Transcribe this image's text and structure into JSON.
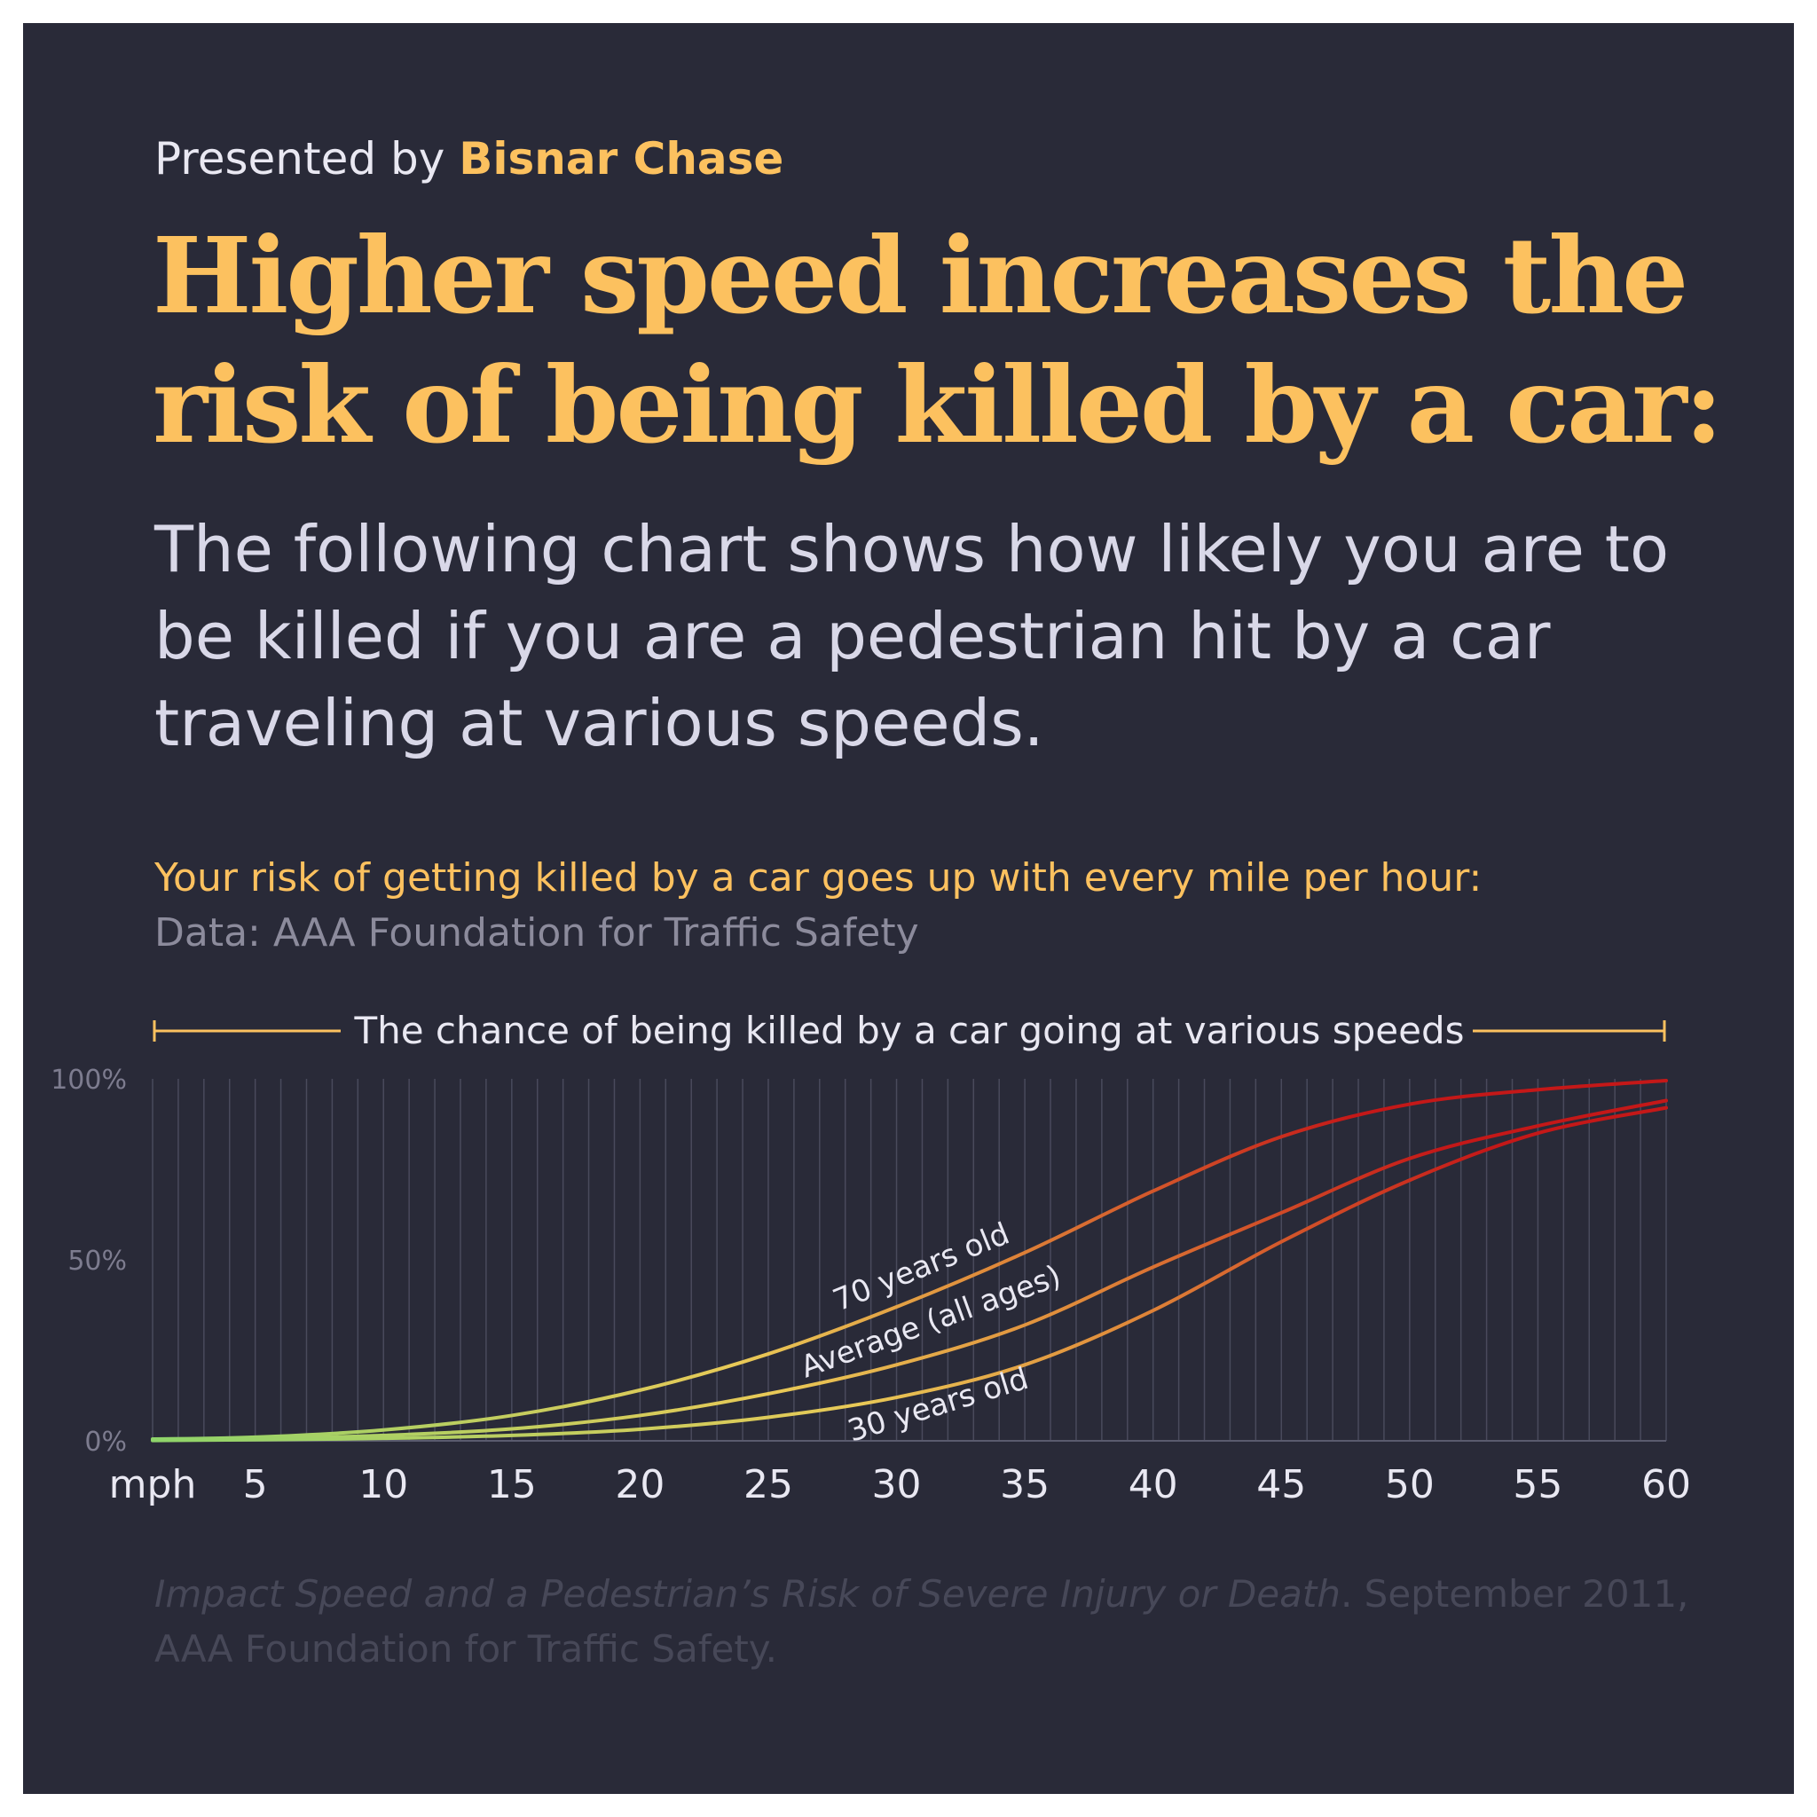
{
  "header": {
    "presented_prefix": "Presented by",
    "presenter": "Bisnar Chase",
    "title": "Higher speed increases the risk of being killed by a car:",
    "subtitle": "The following chart shows how likely you are to be killed if you are a pedestrian hit by a car traveling at various speeds."
  },
  "chart_intro": {
    "heading": "Your risk of getting killed by a car goes up with every mile per hour:",
    "source": "Data: AAA Foundation for Traffic Safety"
  },
  "citation": {
    "italic_part": "Impact Speed and a Pedestrian’s Risk of Severe Injury or Death",
    "rest": ". September 2011, AAA Foundation for Traffic Safety."
  },
  "chart_data": {
    "type": "line",
    "title": "The chance of being killed by a car going at various speeds",
    "xlabel": "mph",
    "xlim": [
      1,
      60
    ],
    "ylim": [
      0,
      100
    ],
    "x_ticks": [
      5,
      10,
      15,
      20,
      25,
      30,
      35,
      40,
      45,
      50,
      55,
      60
    ],
    "y_ticks": [
      {
        "value": 0,
        "label": "0%"
      },
      {
        "value": 50,
        "label": "50%"
      },
      {
        "value": 100,
        "label": "100%"
      }
    ],
    "grid": "vertical line at every mph",
    "colors": {
      "low": "#8ed46a",
      "mid": "#e9c957",
      "mid2": "#e08a3a",
      "high": "#c41818"
    },
    "series": [
      {
        "name": "70 years old",
        "x": [
          1,
          5,
          10,
          15,
          20,
          25,
          30,
          35,
          40,
          45,
          50,
          55,
          60
        ],
        "values": [
          0.5,
          1,
          3,
          7,
          14,
          24,
          37,
          52,
          69,
          84,
          93,
          97,
          99.5
        ]
      },
      {
        "name": "Average (all ages)",
        "x": [
          1,
          5,
          10,
          15,
          20,
          25,
          30,
          35,
          40,
          45,
          50,
          55,
          60
        ],
        "values": [
          0.3,
          0.6,
          1.5,
          3.3,
          7,
          13,
          21,
          32,
          48,
          63,
          78,
          87,
          94
        ]
      },
      {
        "name": "30 years old",
        "x": [
          1,
          5,
          10,
          15,
          20,
          25,
          30,
          35,
          40,
          45,
          50,
          55,
          60
        ],
        "values": [
          0.1,
          0.3,
          0.7,
          1.5,
          3.2,
          6.5,
          12,
          21,
          36,
          55,
          72,
          85,
          92
        ]
      }
    ]
  }
}
